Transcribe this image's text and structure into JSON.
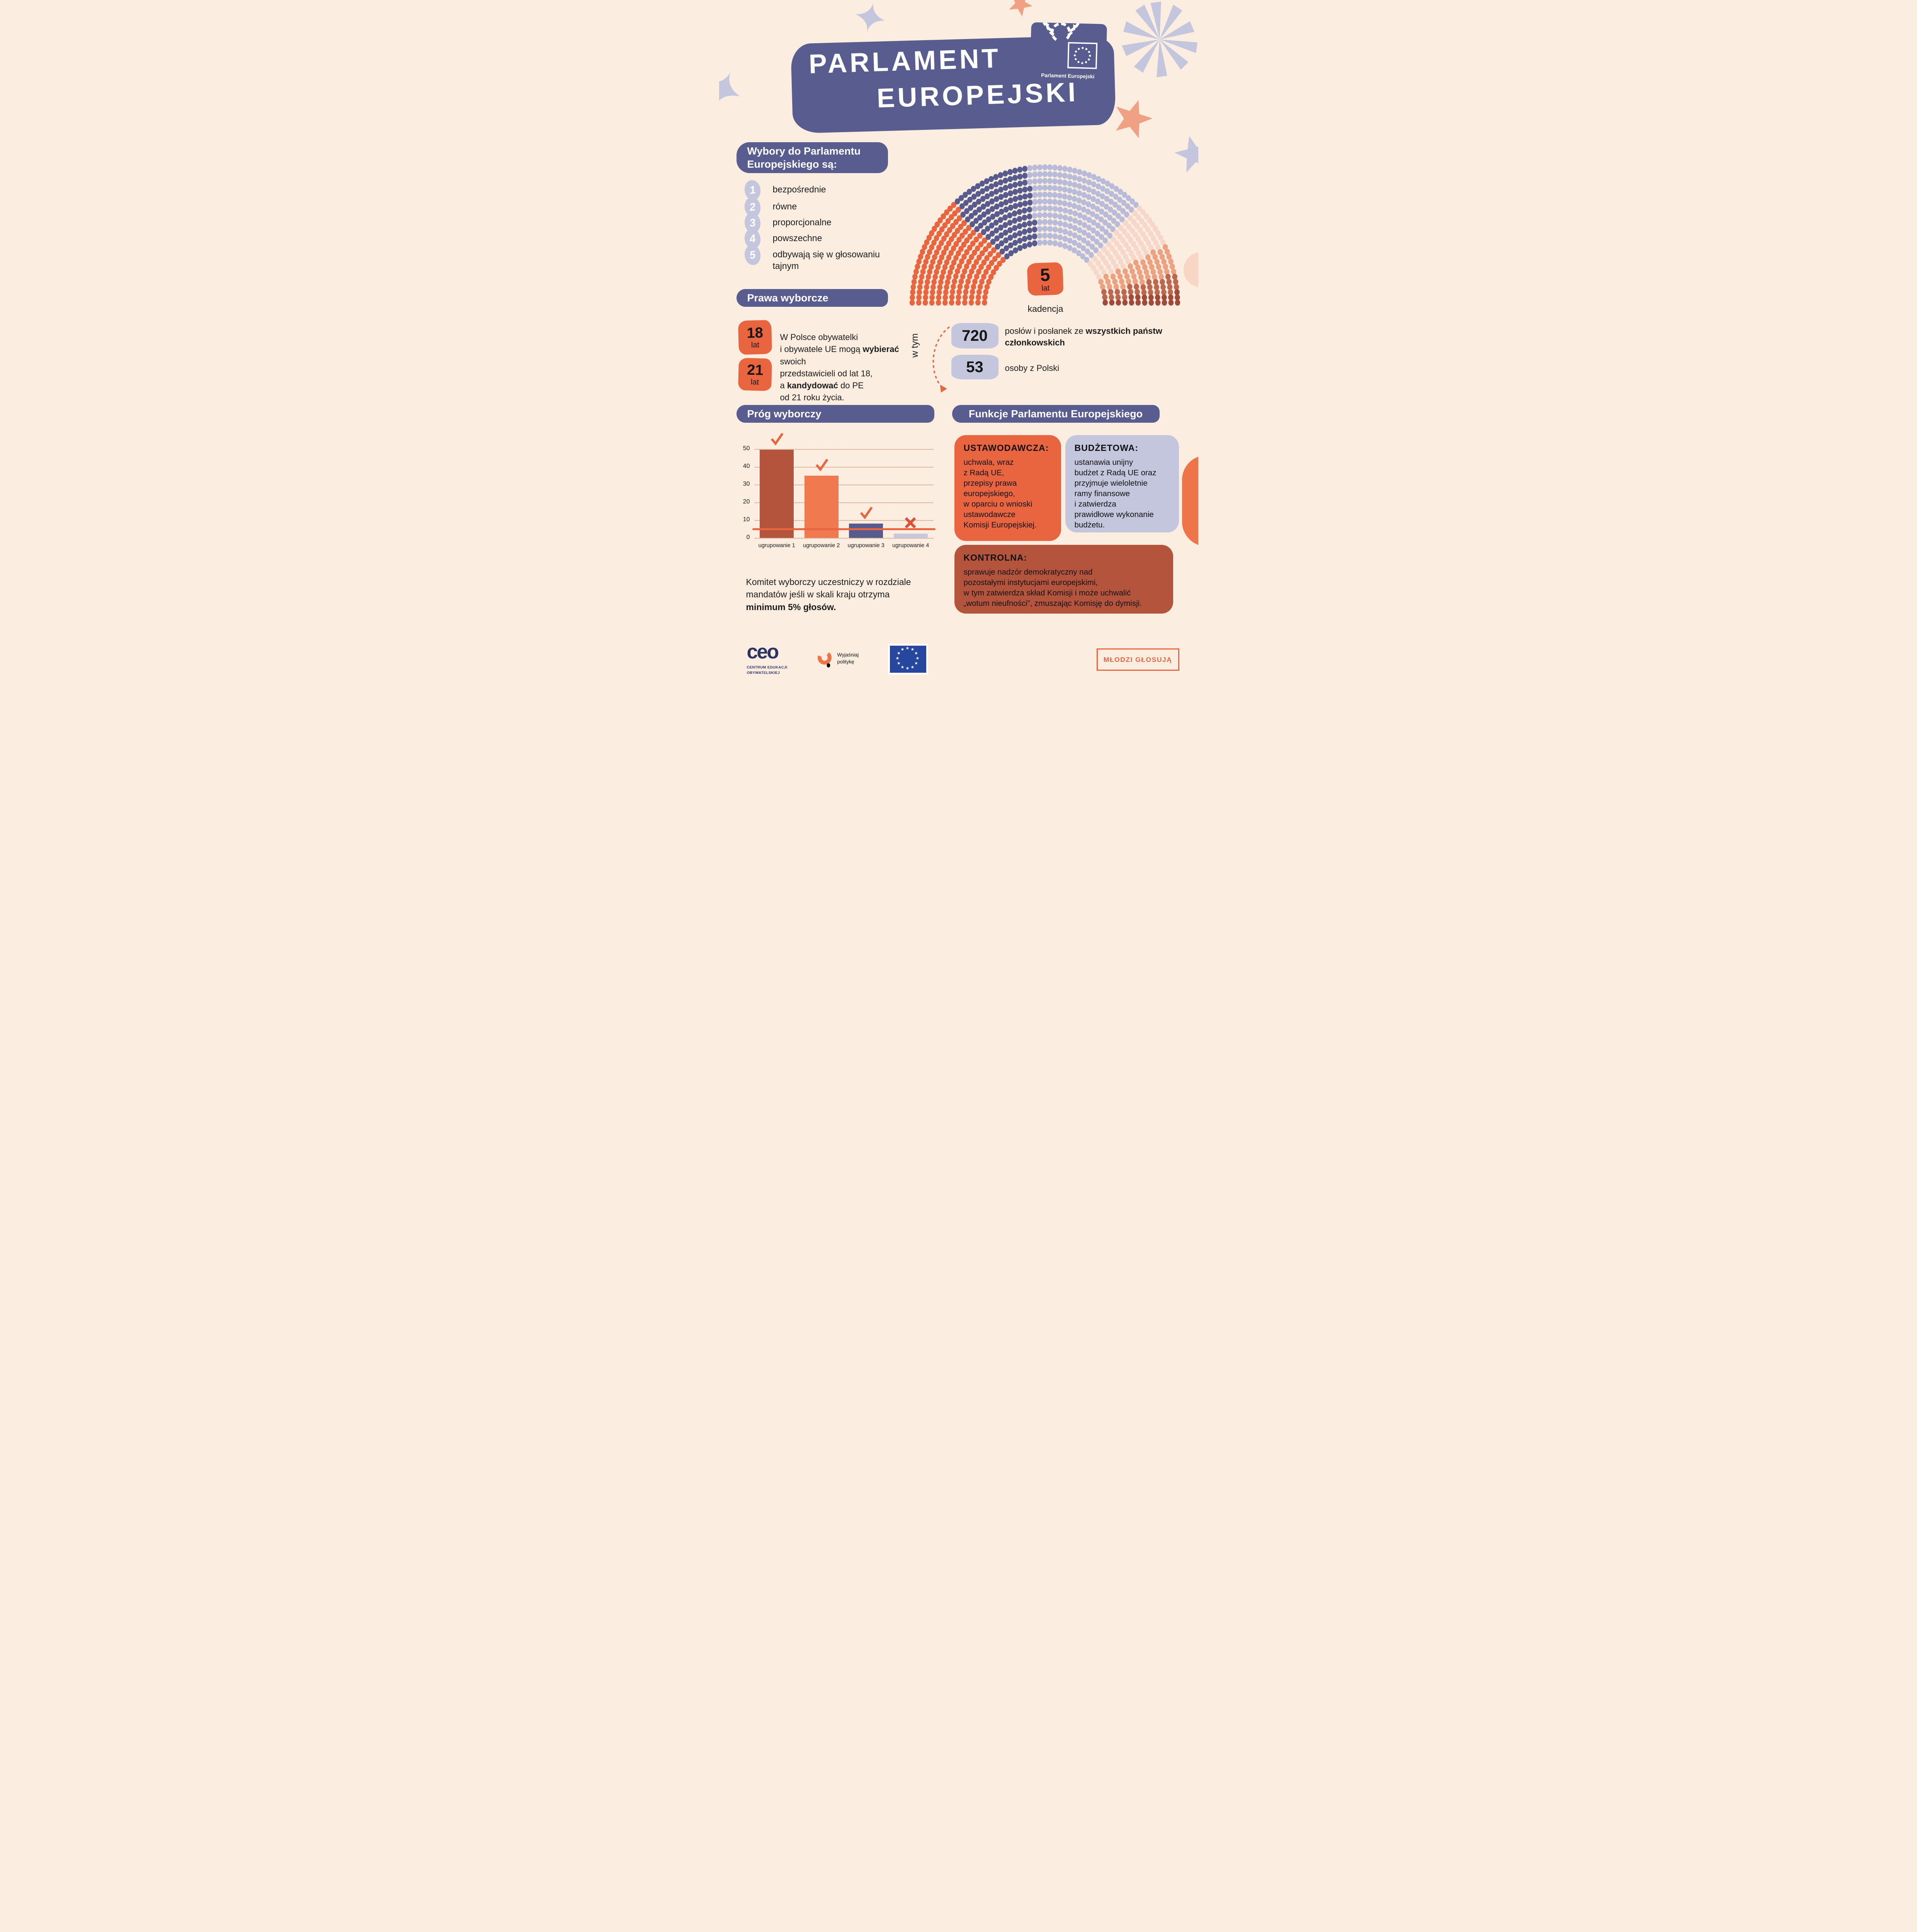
{
  "page": {
    "background": "#fbeee1",
    "accent_orange": "#e8653f",
    "accent_purple": "#585c8e",
    "accent_lavender": "#c4c6de"
  },
  "header": {
    "title_line1": "PARLAMENT",
    "title_line2": "EUROPEJSKI",
    "logo_caption": "Parlament Europejski"
  },
  "wybory": {
    "heading_line1": "Wybory do Parlamentu",
    "heading_line2": "Europejskiego są:",
    "items": [
      {
        "num": "1",
        "label": "bezpośrednie"
      },
      {
        "num": "2",
        "label": "równe"
      },
      {
        "num": "3",
        "label": "proporcjonalne"
      },
      {
        "num": "4",
        "label": "powszechne"
      },
      {
        "num": "5",
        "label": "odbywają się w głosowaniu\ntajnym"
      }
    ]
  },
  "kadencja": {
    "value": "5",
    "unit": "lat",
    "label": "kadencja"
  },
  "sklad": {
    "w_tym": "w tym",
    "total_value": "720",
    "total_label_normal": "posłów i posłanek ze ",
    "total_label_bold": "wszystkich państw członkowskich",
    "poland_value": "53",
    "poland_label": "osoby z Polski"
  },
  "prawa": {
    "heading": "Prawa wyborcze",
    "age1_value": "18",
    "age1_unit": "lat",
    "age2_value": "21",
    "age2_unit": "lat",
    "p1": "W Polsce obywatelki\ni obywatele UE mogą ",
    "b1": "wybierać",
    "p2": " swoich\nprzedstawicieli od lat 18,\na ",
    "b2": "kandydować",
    "p3": " do PE\nod 21 roku życia."
  },
  "prog": {
    "heading": "Próg wyborczy",
    "note_normal": "Komitet wyborczy uczestniczy w rozdziale\nmandatów jeśli w skali kraju otrzyma\n",
    "note_bold": "minimum 5% głosów."
  },
  "funkcje": {
    "heading": "Funkcje Parlamentu Europejskiego",
    "boxes": [
      {
        "title": "USTAWODAWCZA:",
        "color": "#e8653f",
        "text": "uchwala, wraz\nz Radą UE,\nprzepisy prawa\neuropejskiego,\nw oparciu o wnioski\nustawodawcze\nKomisji Europejskiej."
      },
      {
        "title": "BUDŻETOWA:",
        "color": "#c4c6de",
        "text": "ustanawia unijny\nbudżet z Radą UE oraz\nprzyjmuje wieloletnie\nramy finansowe\ni zatwierdza\nprawidłowe wykonanie\nbudżetu."
      },
      {
        "title": "KONTROLNA:",
        "color": "#b5543d",
        "text": "sprawuje nadzór demokratyczny nad\npozostałymi instytucjami europejskimi,\nw tym zatwierdza skład Komisji i może uchwalić\n„wotum nieufności”, zmuszając Komisję do dymisji."
      }
    ]
  },
  "footer": {
    "ceo_word": "ceo",
    "ceo_caption": "CENTRUM EDUKACJI\nOBYWATELSKIEJ",
    "wyjasniaj": "Wyjaśniaj\npolitykę",
    "button_label": "MŁODZI GŁOSUJĄ"
  },
  "chart_data": [
    {
      "type": "parliament-seats",
      "title": "Skład Parlamentu Europejskiego (hemicykl)",
      "total_seats": 720,
      "center_annotation": {
        "value": "5",
        "unit": "lat",
        "label": "kadencja"
      },
      "segments": [
        {
          "name": "grupa-pomaranczowa",
          "seats": 187,
          "color": "#e8653f"
        },
        {
          "name": "grupa-granatowa",
          "seats": 144,
          "color": "#575b8d"
        },
        {
          "name": "grupa-lawendowa",
          "seats": 209,
          "color": "#b9bcd8"
        },
        {
          "name": "grupa-jasnorozowa",
          "seats": 79,
          "color": "#f6d8ca"
        },
        {
          "name": "grupa-lososiowa",
          "seats": 50,
          "color": "#eca181"
        },
        {
          "name": "grupa-terakotowa",
          "seats": 29,
          "color": "#bc6850"
        },
        {
          "name": "grupa-ciemnoruda",
          "seats": 22,
          "color": "#a04a3a"
        }
      ],
      "layout": {
        "rows": 12,
        "inner_radius_ratio": 0.42,
        "start_angle_deg": 180,
        "end_angle_deg": 0,
        "legend": "none"
      }
    },
    {
      "type": "bar",
      "title": "Próg wyborczy",
      "categories": [
        "ugrupowanie 1",
        "ugrupowanie 2",
        "ugrupowanie 3",
        "ugrupowanie 4"
      ],
      "values": [
        49.5,
        35,
        8,
        2.5
      ],
      "bar_colors": [
        "#b5543d",
        "#f0794f",
        "#575b8d",
        "#c6c8de"
      ],
      "marks": [
        "check",
        "check",
        "check",
        "x"
      ],
      "threshold": {
        "value": 5,
        "color": "#e8653f",
        "meaning": "minimum 5% głosów"
      },
      "xlabel": "",
      "ylabel": "",
      "ylim": [
        0,
        50
      ],
      "yticks": [
        0,
        10,
        20,
        30,
        40,
        50
      ],
      "grid": "dotted-horizontal",
      "legend_position": "none"
    }
  ]
}
